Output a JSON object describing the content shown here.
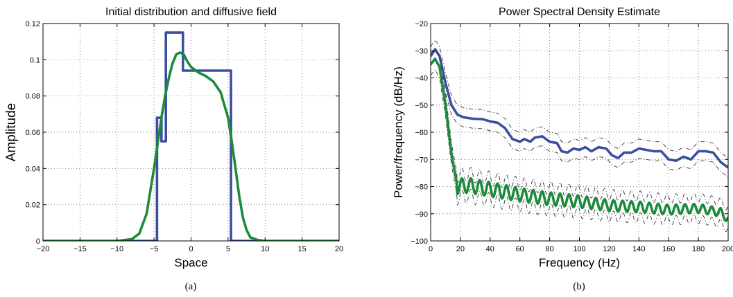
{
  "colors": {
    "blue": "#3a4fa0",
    "green": "#1b8a3c",
    "grid": "#555555",
    "axis": "#000000"
  },
  "chart_data": [
    {
      "type": "line",
      "title": "Initial distribution and diffusive field",
      "xlabel": "Space",
      "ylabel": "Amplitude",
      "caption": "(a)",
      "xlim": [
        -20,
        20
      ],
      "ylim": [
        0,
        0.12
      ],
      "xticks": [
        -20,
        -15,
        -10,
        -5,
        0,
        5,
        10,
        15,
        20
      ],
      "xtick_labels": [
        "−20",
        "−15",
        "−10",
        "−5",
        "0",
        "5",
        "10",
        "15",
        "20"
      ],
      "yticks": [
        0,
        0.02,
        0.04,
        0.06,
        0.08,
        0.1,
        0.12
      ],
      "ytick_labels": [
        "0",
        "0.02",
        "0.04",
        "0.06",
        "0.08",
        "0.1",
        "0.12"
      ],
      "grid": true,
      "series": [
        {
          "color": "blue",
          "style": "step",
          "x": [
            -20,
            -4.6,
            -4.6,
            -4.0,
            -4.0,
            -3.4,
            -3.4,
            -1.1,
            -1.1,
            5.4,
            5.4,
            20
          ],
          "y": [
            0,
            0,
            0.068,
            0.068,
            0.055,
            0.055,
            0.115,
            0.115,
            0.094,
            0.094,
            0,
            0
          ]
        },
        {
          "color": "green",
          "style": "line",
          "x": [
            -20,
            -10,
            -8,
            -7,
            -6,
            -5,
            -4,
            -3.5,
            -3,
            -2.5,
            -2,
            -1.5,
            -1,
            -0.5,
            0,
            1,
            2,
            3,
            4,
            5,
            5.5,
            6,
            6.5,
            7,
            7.5,
            8,
            9,
            10,
            20
          ],
          "y": [
            0,
            0,
            0.001,
            0.004,
            0.015,
            0.04,
            0.068,
            0.08,
            0.09,
            0.098,
            0.103,
            0.104,
            0.103,
            0.099,
            0.096,
            0.093,
            0.091,
            0.088,
            0.082,
            0.068,
            0.055,
            0.04,
            0.025,
            0.013,
            0.006,
            0.002,
            0.0005,
            0,
            0
          ]
        }
      ]
    },
    {
      "type": "line",
      "title": "Power Spectral Density Estimate",
      "xlabel": "Frequency (Hz)",
      "ylabel": "Power/frequency (dB/Hz)",
      "caption": "(b)",
      "xlim": [
        0,
        200
      ],
      "ylim": [
        -100,
        -20
      ],
      "xticks": [
        0,
        20,
        40,
        60,
        80,
        100,
        120,
        140,
        160,
        180,
        200
      ],
      "xtick_labels": [
        "0",
        "20",
        "40",
        "60",
        "80",
        "100",
        "120",
        "140",
        "160",
        "180",
        "200"
      ],
      "yticks": [
        -100,
        -90,
        -80,
        -70,
        -60,
        -50,
        -40,
        -30,
        -20
      ],
      "ytick_labels": [
        "−100",
        "−90",
        "−80",
        "−70",
        "−60",
        "−50",
        "−40",
        "−30",
        "−20"
      ],
      "grid": true,
      "series": [
        {
          "color": "blue",
          "style": "line",
          "confidence_band": 3.5,
          "x": [
            0,
            3,
            6,
            10,
            14,
            18,
            22,
            28,
            35,
            40,
            45,
            50,
            55,
            60,
            63,
            67,
            70,
            75,
            80,
            85,
            88,
            92,
            96,
            100,
            104,
            108,
            113,
            118,
            122,
            126,
            130,
            135,
            140,
            145,
            150,
            155,
            160,
            165,
            170,
            175,
            180,
            185,
            190,
            195,
            200
          ],
          "y": [
            -32,
            -29.5,
            -32,
            -42,
            -50,
            -53.5,
            -54.5,
            -55,
            -55.2,
            -56,
            -56.5,
            -58.5,
            -62.5,
            -63.5,
            -62.5,
            -63.5,
            -62,
            -61.5,
            -63.5,
            -64,
            -67,
            -67.5,
            -66,
            -66.5,
            -65.5,
            -67,
            -65.5,
            -66,
            -68.5,
            -69.5,
            -67.5,
            -67.5,
            -66,
            -66.5,
            -67,
            -67,
            -70,
            -70.5,
            -69,
            -70,
            -67,
            -67,
            -67.5,
            -71,
            -73
          ]
        },
        {
          "color": "green",
          "style": "line",
          "confidence_band": 4,
          "oscillation": {
            "period": 6,
            "amplitude": 2.8
          },
          "x": [
            0,
            3,
            6,
            10,
            14,
            18,
            25,
            40,
            60,
            80,
            100,
            120,
            140,
            160,
            180,
            195,
            200
          ],
          "y": [
            -35,
            -33,
            -36,
            -50,
            -68,
            -80,
            -79.5,
            -81,
            -83,
            -84.5,
            -85.5,
            -87,
            -87.5,
            -88.5,
            -88,
            -89.5,
            -92
          ]
        }
      ]
    }
  ]
}
